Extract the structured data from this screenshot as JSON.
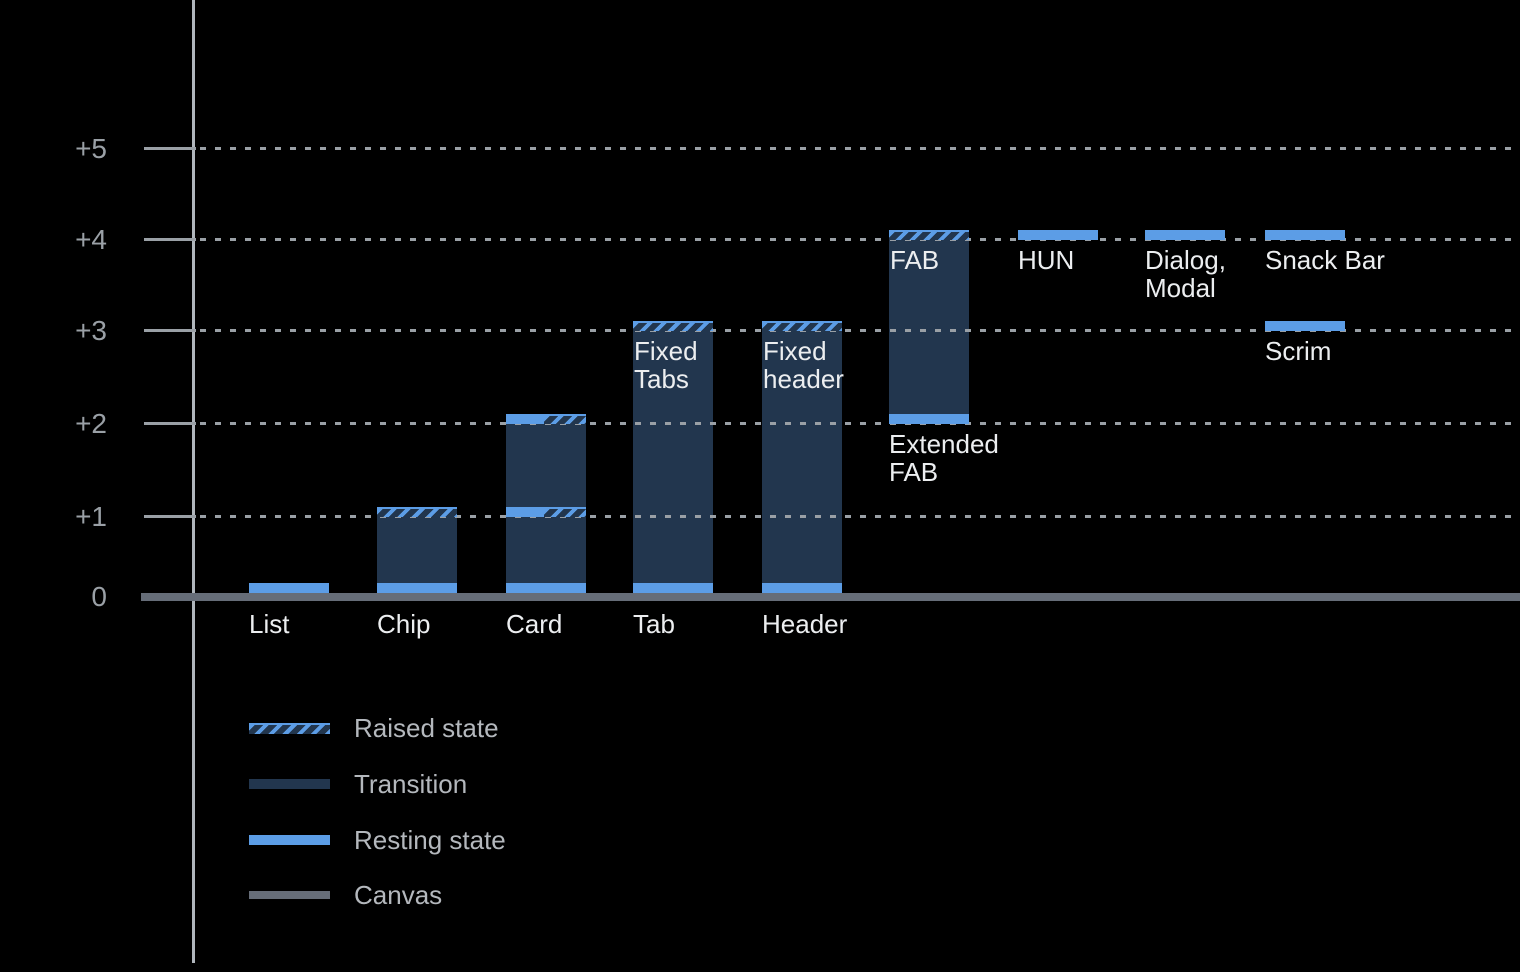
{
  "colors": {
    "background": "#000000",
    "resting_blue": "#5c9de6",
    "transition_dark_blue": "#22364e",
    "canvas_gray": "#666d78",
    "grid_gray": "#9aa0a6",
    "axis_line_gray": "#b0b6bc",
    "bar_label_white": "#eceef0",
    "legend_text_gray": "#b4b8bd"
  },
  "chart_data": {
    "type": "bar",
    "title": "",
    "xlabel": "",
    "ylabel": "",
    "ylim": [
      0,
      5
    ],
    "grid": "dotted horizontal lines at +1 through +5",
    "legend_position": "bottom-left",
    "y_axis": {
      "ticks": [
        {
          "level": 5,
          "label": "+5"
        },
        {
          "level": 4,
          "label": "+4"
        },
        {
          "level": 3,
          "label": "+3"
        },
        {
          "level": 2,
          "label": "+2"
        },
        {
          "level": 1,
          "label": "+1"
        },
        {
          "level": 0,
          "label": "0"
        }
      ]
    },
    "components": [
      {
        "label": "List",
        "col": 0,
        "label_position": "below-canvas",
        "resting_elevation": 0,
        "raised_elevation": null,
        "segments": [
          {
            "kind": "resting",
            "level": 0
          }
        ]
      },
      {
        "label": "Chip",
        "col": 1,
        "label_position": "below-canvas",
        "resting_elevation": 0,
        "raised_elevation": 1,
        "segments": [
          {
            "kind": "hatch",
            "level": 1
          },
          {
            "kind": "transition",
            "from": 0,
            "to": 1
          },
          {
            "kind": "resting",
            "level": 0
          }
        ]
      },
      {
        "label": "Card",
        "col": 2,
        "label_position": "below-canvas",
        "resting_elevation": 1,
        "raised_elevation": 2,
        "segments": [
          {
            "kind": "split",
            "level": 2
          },
          {
            "kind": "transition",
            "from": 1,
            "to": 2
          },
          {
            "kind": "split",
            "level": 1
          },
          {
            "kind": "transition",
            "from": 0,
            "to": 1
          },
          {
            "kind": "resting",
            "level": 0
          }
        ]
      },
      {
        "label": "Tab",
        "col": 3,
        "label_position": "below-canvas",
        "inner_label": "Fixed\nTabs",
        "inner_label_level": 3,
        "resting_elevation": 0,
        "raised_elevation": 3,
        "segments": [
          {
            "kind": "hatch",
            "level": 3
          },
          {
            "kind": "transition",
            "from": 0,
            "to": 3
          },
          {
            "kind": "resting",
            "level": 0
          }
        ]
      },
      {
        "label": "Header",
        "col": 4,
        "label_position": "below-canvas",
        "inner_label": "Fixed\nheader",
        "inner_label_level": 3,
        "resting_elevation": 0,
        "raised_elevation": 3,
        "segments": [
          {
            "kind": "hatch",
            "level": 3
          },
          {
            "kind": "transition",
            "from": 0,
            "to": 3
          },
          {
            "kind": "resting",
            "level": 0
          }
        ]
      },
      {
        "label": "Extended\nFAB",
        "col": 5,
        "label_position": "below-level",
        "label_level": 2,
        "inner_label": "FAB",
        "inner_label_level": 4,
        "resting_elevation": 2,
        "raised_elevation": 4,
        "segments": [
          {
            "kind": "hatch",
            "level": 4
          },
          {
            "kind": "transition",
            "from": 2,
            "to": 4
          },
          {
            "kind": "resting",
            "level": 2
          }
        ]
      },
      {
        "label": "HUN",
        "col": 6,
        "label_position": "below-level",
        "label_level": 4,
        "resting_elevation": 4,
        "raised_elevation": null,
        "segments": [
          {
            "kind": "resting",
            "level": 4
          }
        ]
      },
      {
        "label": "Dialog,\nModal",
        "col": 7,
        "label_position": "below-level",
        "label_level": 4,
        "resting_elevation": 4,
        "raised_elevation": null,
        "segments": [
          {
            "kind": "resting",
            "level": 4
          }
        ]
      },
      {
        "label": "Snack Bar",
        "col": 8,
        "label_position": "below-level",
        "label_level": 4,
        "resting_elevation": 4,
        "raised_elevation": null,
        "segments": [
          {
            "kind": "resting",
            "level": 4
          }
        ]
      },
      {
        "label": "Scrim",
        "col": 8,
        "label_position": "below-level",
        "label_level": 3,
        "resting_elevation": 3,
        "raised_elevation": null,
        "segments": [
          {
            "kind": "resting",
            "level": 3
          }
        ]
      }
    ],
    "legend": [
      {
        "label": "Raised state",
        "swatch": "hatch"
      },
      {
        "label": "Transition",
        "swatch": "transition"
      },
      {
        "label": "Resting state",
        "swatch": "resting"
      },
      {
        "label": "Canvas",
        "swatch": "canvas"
      }
    ]
  }
}
